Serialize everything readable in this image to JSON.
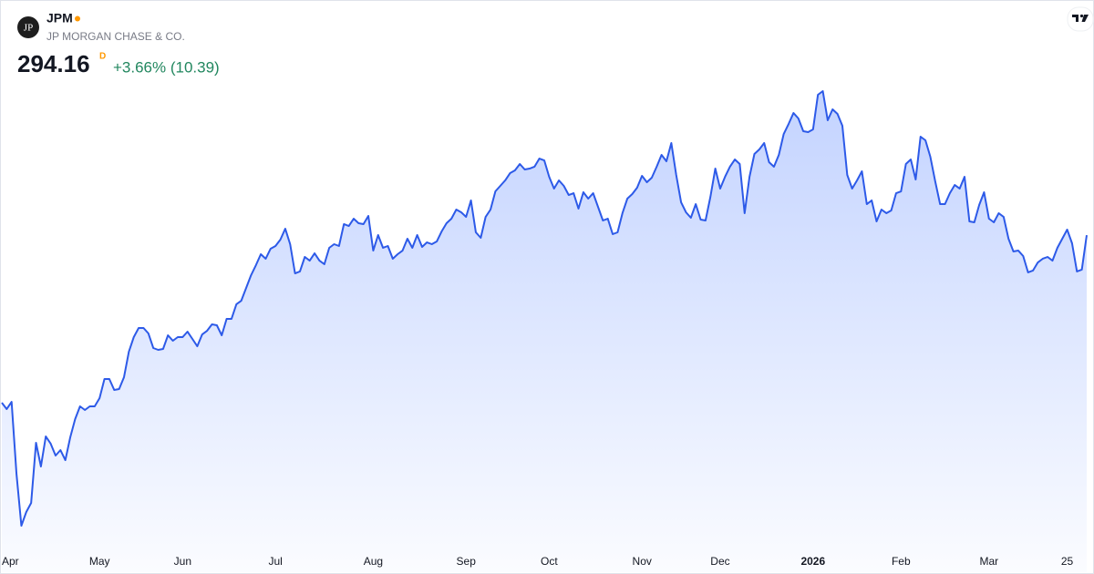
{
  "header": {
    "logo": "JP",
    "symbol": "JPM",
    "company": "JP MORGAN CHASE & CO.",
    "price": "294.16",
    "interval": "D",
    "change": "+3.66% (10.39)"
  },
  "chart_data": {
    "type": "area",
    "color": "#2d5ae8",
    "ylim": [
      205,
      338
    ],
    "xticks": [
      {
        "value": 0,
        "label": "Apr"
      },
      {
        "value": 20,
        "label": "May"
      },
      {
        "value": 37,
        "label": "Jun"
      },
      {
        "value": 56,
        "label": "Jul"
      },
      {
        "value": 76,
        "label": "Aug"
      },
      {
        "value": 95,
        "label": "Sep"
      },
      {
        "value": 112,
        "label": "Oct"
      },
      {
        "value": 131,
        "label": "Nov"
      },
      {
        "value": 147,
        "label": "Dec"
      },
      {
        "value": 166,
        "label": "2026"
      },
      {
        "value": 184,
        "label": "Feb"
      },
      {
        "value": 202,
        "label": "Mar"
      },
      {
        "value": 218,
        "label": "25"
      }
    ],
    "values": [
      246.2,
      244.38,
      246.46,
      225.86,
      211.0,
      214.91,
      217.52,
      234.73,
      227.95,
      236.55,
      234.47,
      231.08,
      232.64,
      229.77,
      236.29,
      241.51,
      245.16,
      244.12,
      245.16,
      245.16,
      247.51,
      252.98,
      252.98,
      249.85,
      250.11,
      253.51,
      260.81,
      264.98,
      267.59,
      267.59,
      266.02,
      261.85,
      261.33,
      261.59,
      265.5,
      263.94,
      264.98,
      264.98,
      266.54,
      264.46,
      262.37,
      265.76,
      266.8,
      268.63,
      268.37,
      265.5,
      270.2,
      270.2,
      274.37,
      275.41,
      279.06,
      282.71,
      285.58,
      288.71,
      287.41,
      290.28,
      291.06,
      292.88,
      296.01,
      291.58,
      283.23,
      283.76,
      287.93,
      286.88,
      288.97,
      286.88,
      285.84,
      290.54,
      291.58,
      291.06,
      297.32,
      296.79,
      298.88,
      297.58,
      297.32,
      299.66,
      289.75,
      294.19,
      290.54,
      291.06,
      287.41,
      288.71,
      289.75,
      293.14,
      290.54,
      294.19,
      290.8,
      292.1,
      291.58,
      292.36,
      295.23,
      297.58,
      298.88,
      301.49,
      300.71,
      299.4,
      304.1,
      294.97,
      293.4,
      299.4,
      301.49,
      306.7,
      308.27,
      309.83,
      311.92,
      312.7,
      314.53,
      312.96,
      313.22,
      313.75,
      316.09,
      315.57,
      310.88,
      307.49,
      309.83,
      308.27,
      305.66,
      306.18,
      301.75,
      306.44,
      304.62,
      306.18,
      302.27,
      298.36,
      298.88,
      294.45,
      294.97,
      300.45,
      304.62,
      305.92,
      307.75,
      311.14,
      309.31,
      310.62,
      313.75,
      317.14,
      315.31,
      320.53,
      311.4,
      303.57,
      300.71,
      299.14,
      303.05,
      298.62,
      298.36,
      305.14,
      313.22,
      307.49,
      310.88,
      313.75,
      315.83,
      314.53,
      300.45,
      310.88,
      317.4,
      318.7,
      320.53,
      315.05,
      313.75,
      317.14,
      323.13,
      326.0,
      329.13,
      327.57,
      323.92,
      323.65,
      324.44,
      334.35,
      335.39,
      327.05,
      330.17,
      328.87,
      325.48,
      311.4,
      307.49,
      309.83,
      312.44,
      303.05,
      304.1,
      298.1,
      301.49,
      300.45,
      301.23,
      306.18,
      306.7,
      314.53,
      315.83,
      310.09,
      322.35,
      321.31,
      316.61,
      309.57,
      303.05,
      303.05,
      306.18,
      308.53,
      307.49,
      310.88,
      298.1,
      297.84,
      302.79,
      306.44,
      298.88,
      297.84,
      300.45,
      299.4,
      293.14,
      289.49,
      289.75,
      288.19,
      283.5,
      284.02,
      286.36,
      287.41,
      287.93,
      286.88,
      290.54,
      293.14,
      295.75,
      291.84,
      283.77,
      284.29,
      294.16
    ]
  }
}
